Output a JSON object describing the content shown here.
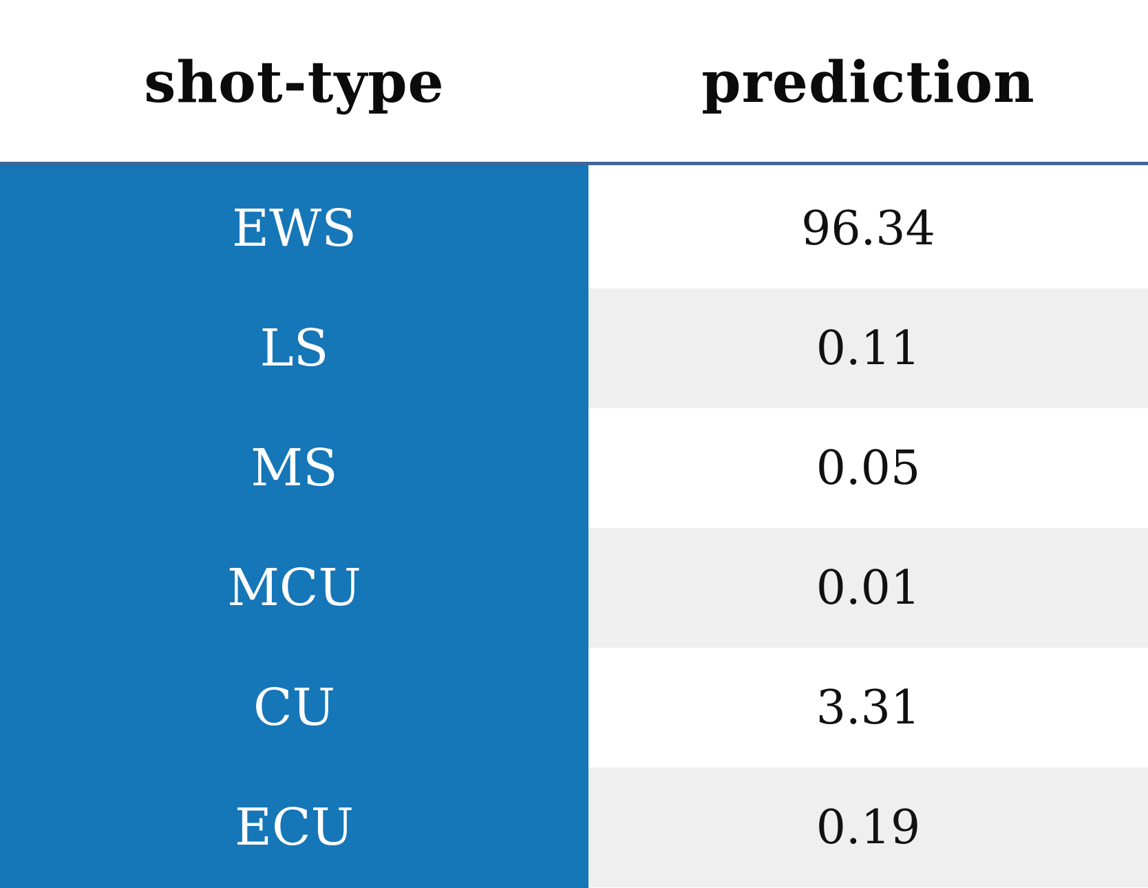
{
  "chart_data": {
    "type": "table",
    "columns": [
      "shot-type",
      "prediction"
    ],
    "rows": [
      {
        "label": "EWS",
        "value": "96.34"
      },
      {
        "label": "LS",
        "value": "0.11"
      },
      {
        "label": "MS",
        "value": "0.05"
      },
      {
        "label": "MCU",
        "value": "0.01"
      },
      {
        "label": "CU",
        "value": "3.31"
      },
      {
        "label": "ECU",
        "value": "0.19"
      }
    ]
  },
  "colors": {
    "label_column_bg": "#1576b8",
    "header_rule": "#3e6797",
    "stripe_even": "#ffffff",
    "stripe_odd": "#efefef"
  }
}
